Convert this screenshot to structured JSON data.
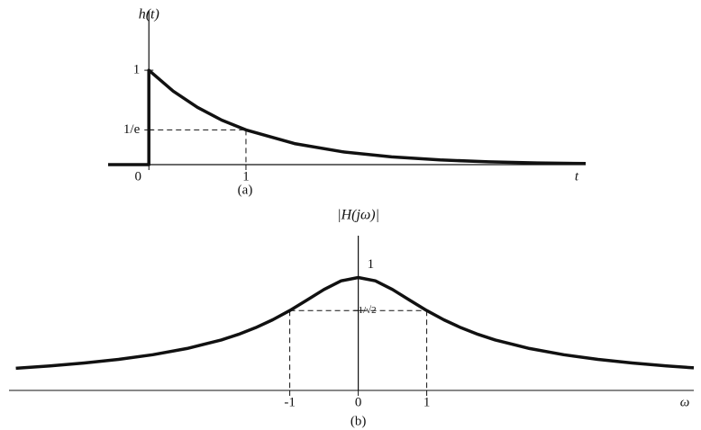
{
  "chart_data": [
    {
      "type": "line",
      "ylabel": "h(t)",
      "xlabel": "t",
      "caption": "(a)",
      "x": [
        -0.42,
        0,
        0,
        0.25,
        0.5,
        0.75,
        1,
        1.5,
        2,
        2.5,
        3,
        3.5,
        4,
        4.5
      ],
      "series": [
        {
          "color": "#111111",
          "values": [
            0,
            0,
            1,
            0.779,
            0.607,
            0.472,
            0.368,
            0.223,
            0.135,
            0.082,
            0.05,
            0.03,
            0.018,
            0.011
          ]
        }
      ],
      "xlim": [
        -0.42,
        4.5
      ],
      "ylim": [
        0,
        1.63
      ],
      "xticks": [
        0,
        1
      ],
      "yticks": [
        1,
        {
          "value": 0.368,
          "label": "1/e"
        }
      ]
    },
    {
      "type": "line",
      "ylabel": "|H(jω)|",
      "xlabel": "ω",
      "caption": "(b)",
      "x": [
        -5,
        -4.5,
        -4,
        -3.5,
        -3,
        -2.5,
        -2,
        -1.75,
        -1.5,
        -1.25,
        -1,
        -0.75,
        -0.5,
        -0.25,
        0,
        0.25,
        0.5,
        0.75,
        1,
        1.25,
        1.5,
        1.75,
        2,
        2.5,
        3,
        3.5,
        4,
        4.5,
        4.9
      ],
      "series": [
        {
          "color": "#111111",
          "values": [
            0.196,
            0.217,
            0.243,
            0.275,
            0.316,
            0.371,
            0.447,
            0.496,
            0.555,
            0.625,
            0.707,
            0.8,
            0.894,
            0.97,
            1,
            0.97,
            0.894,
            0.8,
            0.707,
            0.625,
            0.555,
            0.496,
            0.447,
            0.371,
            0.316,
            0.275,
            0.243,
            0.217,
            0.2
          ]
        }
      ],
      "xlim": [
        -5.1,
        4.9
      ],
      "ylim": [
        0,
        1.37
      ],
      "xticks": [
        -1,
        0,
        1
      ],
      "yticks": [
        1,
        {
          "value": 0.707,
          "label": "1/√2"
        }
      ]
    }
  ]
}
